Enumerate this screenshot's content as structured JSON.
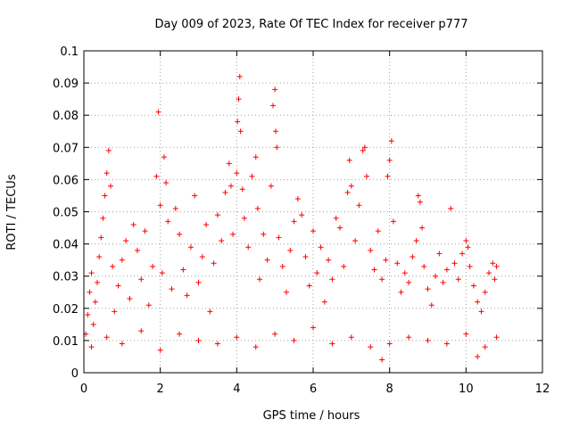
{
  "chart_data": {
    "type": "scatter",
    "title": "Day 009 of 2023, Rate Of TEC Index for receiver p777",
    "xlabel": "GPS time / hours",
    "ylabel": "ROTI / TECUs",
    "xlim": [
      0,
      12
    ],
    "ylim": [
      0,
      0.1
    ],
    "x_ticks": [
      0,
      2,
      4,
      6,
      8,
      10,
      12
    ],
    "x_tick_labels": [
      "0",
      "2",
      "4",
      "6",
      "8",
      "10",
      "12"
    ],
    "y_ticks": [
      0,
      0.01,
      0.02,
      0.03,
      0.04,
      0.05,
      0.06,
      0.07,
      0.08,
      0.09,
      0.1
    ],
    "y_tick_labels": [
      "0",
      "0.01",
      "0.02",
      "0.03",
      "0.04",
      "0.05",
      "0.06",
      "0.07",
      "0.08",
      "0.09",
      "0.1"
    ],
    "grid": true,
    "marker": "+",
    "color": "#ff0000",
    "series": [
      {
        "name": "ROTI",
        "points": [
          [
            0.05,
            0.012
          ],
          [
            0.1,
            0.018
          ],
          [
            0.15,
            0.025
          ],
          [
            0.2,
            0.031
          ],
          [
            0.25,
            0.015
          ],
          [
            0.3,
            0.022
          ],
          [
            0.35,
            0.028
          ],
          [
            0.4,
            0.036
          ],
          [
            0.45,
            0.042
          ],
          [
            0.5,
            0.048
          ],
          [
            0.55,
            0.055
          ],
          [
            0.6,
            0.062
          ],
          [
            0.65,
            0.069
          ],
          [
            0.7,
            0.058
          ],
          [
            0.75,
            0.033
          ],
          [
            0.8,
            0.019
          ],
          [
            0.9,
            0.027
          ],
          [
            1.0,
            0.035
          ],
          [
            1.1,
            0.041
          ],
          [
            1.2,
            0.023
          ],
          [
            1.3,
            0.046
          ],
          [
            1.4,
            0.038
          ],
          [
            1.5,
            0.029
          ],
          [
            1.6,
            0.044
          ],
          [
            1.7,
            0.021
          ],
          [
            1.8,
            0.033
          ],
          [
            1.9,
            0.061
          ],
          [
            1.95,
            0.081
          ],
          [
            2.0,
            0.052
          ],
          [
            2.05,
            0.031
          ],
          [
            2.1,
            0.067
          ],
          [
            2.15,
            0.059
          ],
          [
            2.2,
            0.047
          ],
          [
            2.3,
            0.026
          ],
          [
            2.4,
            0.051
          ],
          [
            2.5,
            0.043
          ],
          [
            2.6,
            0.032
          ],
          [
            2.7,
            0.024
          ],
          [
            2.8,
            0.039
          ],
          [
            2.9,
            0.055
          ],
          [
            3.0,
            0.028
          ],
          [
            3.1,
            0.036
          ],
          [
            3.2,
            0.046
          ],
          [
            3.3,
            0.019
          ],
          [
            3.4,
            0.034
          ],
          [
            3.5,
            0.049
          ],
          [
            3.6,
            0.041
          ],
          [
            3.7,
            0.056
          ],
          [
            3.8,
            0.065
          ],
          [
            3.85,
            0.058
          ],
          [
            3.9,
            0.043
          ],
          [
            4.0,
            0.062
          ],
          [
            4.02,
            0.078
          ],
          [
            4.05,
            0.085
          ],
          [
            4.08,
            0.092
          ],
          [
            4.1,
            0.075
          ],
          [
            4.15,
            0.057
          ],
          [
            4.2,
            0.048
          ],
          [
            4.3,
            0.039
          ],
          [
            4.4,
            0.061
          ],
          [
            4.5,
            0.067
          ],
          [
            4.55,
            0.051
          ],
          [
            4.6,
            0.029
          ],
          [
            4.7,
            0.043
          ],
          [
            4.8,
            0.035
          ],
          [
            4.9,
            0.058
          ],
          [
            4.95,
            0.083
          ],
          [
            5.0,
            0.088
          ],
          [
            5.02,
            0.075
          ],
          [
            5.05,
            0.07
          ],
          [
            5.1,
            0.042
          ],
          [
            5.2,
            0.033
          ],
          [
            5.3,
            0.025
          ],
          [
            5.4,
            0.038
          ],
          [
            5.5,
            0.047
          ],
          [
            5.6,
            0.054
          ],
          [
            5.7,
            0.049
          ],
          [
            5.8,
            0.036
          ],
          [
            5.9,
            0.027
          ],
          [
            6.0,
            0.044
          ],
          [
            6.1,
            0.031
          ],
          [
            6.2,
            0.039
          ],
          [
            6.3,
            0.022
          ],
          [
            6.4,
            0.035
          ],
          [
            6.5,
            0.029
          ],
          [
            6.6,
            0.048
          ],
          [
            6.7,
            0.045
          ],
          [
            6.8,
            0.033
          ],
          [
            6.9,
            0.056
          ],
          [
            6.95,
            0.066
          ],
          [
            7.0,
            0.058
          ],
          [
            7.1,
            0.041
          ],
          [
            7.2,
            0.052
          ],
          [
            7.3,
            0.069
          ],
          [
            7.35,
            0.07
          ],
          [
            7.4,
            0.061
          ],
          [
            7.5,
            0.038
          ],
          [
            7.6,
            0.032
          ],
          [
            7.7,
            0.044
          ],
          [
            7.8,
            0.029
          ],
          [
            7.9,
            0.035
          ],
          [
            7.95,
            0.061
          ],
          [
            8.0,
            0.066
          ],
          [
            8.05,
            0.072
          ],
          [
            8.1,
            0.047
          ],
          [
            8.2,
            0.034
          ],
          [
            8.3,
            0.025
          ],
          [
            8.4,
            0.031
          ],
          [
            8.5,
            0.028
          ],
          [
            8.6,
            0.036
          ],
          [
            8.7,
            0.041
          ],
          [
            8.75,
            0.055
          ],
          [
            8.8,
            0.053
          ],
          [
            8.85,
            0.045
          ],
          [
            8.9,
            0.033
          ],
          [
            9.0,
            0.026
          ],
          [
            9.1,
            0.021
          ],
          [
            9.2,
            0.03
          ],
          [
            9.3,
            0.037
          ],
          [
            9.4,
            0.028
          ],
          [
            9.5,
            0.032
          ],
          [
            9.6,
            0.051
          ],
          [
            9.7,
            0.034
          ],
          [
            9.8,
            0.029
          ],
          [
            9.9,
            0.037
          ],
          [
            10.0,
            0.041
          ],
          [
            10.05,
            0.039
          ],
          [
            10.1,
            0.033
          ],
          [
            10.2,
            0.027
          ],
          [
            10.3,
            0.022
          ],
          [
            10.4,
            0.019
          ],
          [
            10.5,
            0.025
          ],
          [
            10.6,
            0.031
          ],
          [
            10.7,
            0.034
          ],
          [
            10.75,
            0.029
          ],
          [
            10.8,
            0.033
          ],
          [
            0.2,
            0.008
          ],
          [
            0.6,
            0.011
          ],
          [
            1.0,
            0.009
          ],
          [
            1.5,
            0.013
          ],
          [
            2.0,
            0.007
          ],
          [
            2.5,
            0.012
          ],
          [
            3.0,
            0.01
          ],
          [
            3.5,
            0.009
          ],
          [
            4.0,
            0.011
          ],
          [
            4.5,
            0.008
          ],
          [
            5.0,
            0.012
          ],
          [
            5.5,
            0.01
          ],
          [
            6.0,
            0.014
          ],
          [
            6.5,
            0.009
          ],
          [
            7.0,
            0.011
          ],
          [
            7.5,
            0.008
          ],
          [
            7.8,
            0.004
          ],
          [
            8.0,
            0.009
          ],
          [
            8.5,
            0.011
          ],
          [
            9.0,
            0.01
          ],
          [
            9.5,
            0.009
          ],
          [
            10.0,
            0.012
          ],
          [
            10.3,
            0.005
          ],
          [
            10.5,
            0.008
          ],
          [
            10.8,
            0.011
          ]
        ]
      }
    ]
  }
}
